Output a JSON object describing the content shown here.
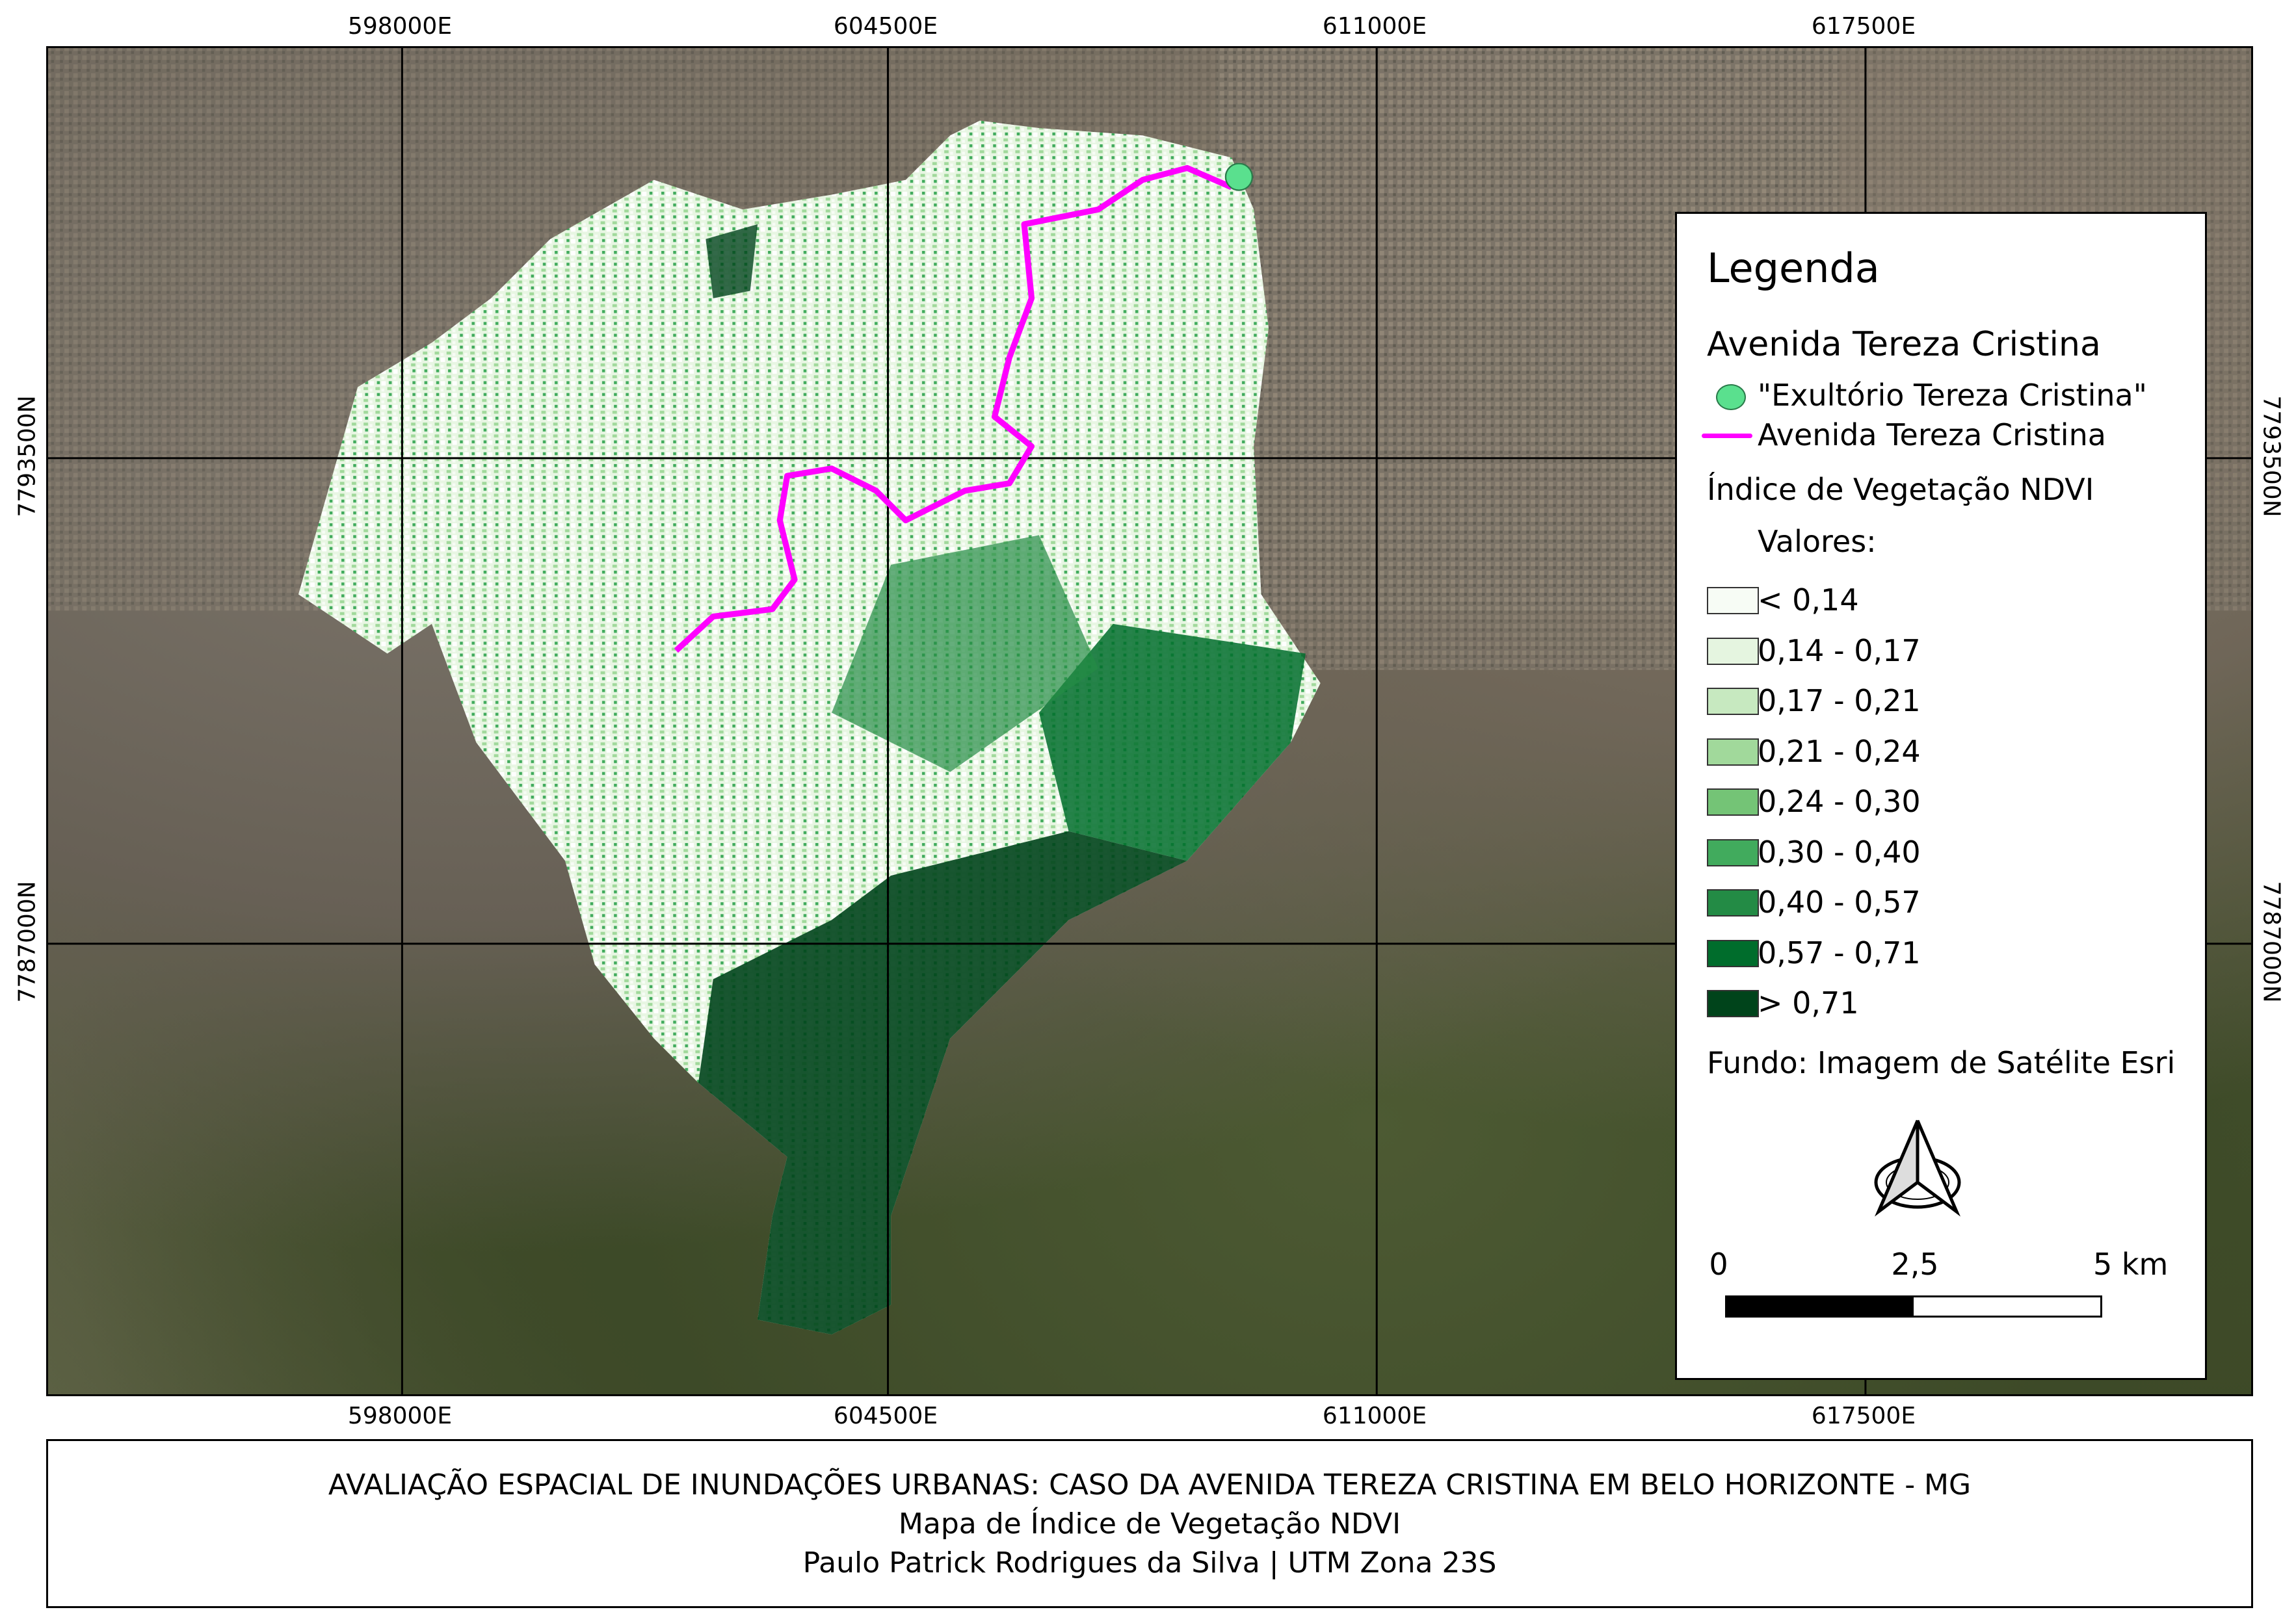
{
  "map": {
    "grid_labels": {
      "easting": [
        "598000E",
        "604500E",
        "611000E",
        "617500E"
      ],
      "northing": [
        "7793500N",
        "7787000N"
      ]
    },
    "basemap": "Esri satellite imagery",
    "route_color": "#ff00ff",
    "outlet_color": "#5ae08e"
  },
  "legend": {
    "title": "Legenda",
    "group1_title": "Avenida Tereza Cristina",
    "outlet_label": "\"Exultório Tereza Cristina\"",
    "road_label": "Avenida Tereza Cristina",
    "ndvi_title": "Índice de Vegetação NDVI",
    "values_label": "Valores:",
    "classes": [
      {
        "label": "< 0,14",
        "color": "#f7fcf5"
      },
      {
        "label": "0,14 - 0,17",
        "color": "#e5f5e0"
      },
      {
        "label": "0,17 - 0,21",
        "color": "#c7e9c0"
      },
      {
        "label": "0,21 - 0,24",
        "color": "#a1d99b"
      },
      {
        "label": "0,24 - 0,30",
        "color": "#74c476"
      },
      {
        "label": "0,30 - 0,40",
        "color": "#41ab5d"
      },
      {
        "label": "0,40 - 0,57",
        "color": "#238b45"
      },
      {
        "label": "0,57 - 0,71",
        "color": "#006d2c"
      },
      {
        "label": "> 0,71",
        "color": "#00441b"
      }
    ],
    "background_note": "Fundo: Imagem de Satélite Esri",
    "north_arrow": "north-arrow-icon",
    "scale": {
      "labels": [
        "0",
        "2,5",
        "5 km"
      ]
    }
  },
  "title_block": {
    "line1": "AVALIAÇÃO ESPACIAL DE INUNDAÇÕES URBANAS: CASO DA AVENIDA TEREZA CRISTINA EM BELO HORIZONTE - MG",
    "line2": "Mapa de Índice de Vegetação NDVI",
    "line3": "Paulo Patrick Rodrigues da Silva | UTM Zona 23S"
  }
}
